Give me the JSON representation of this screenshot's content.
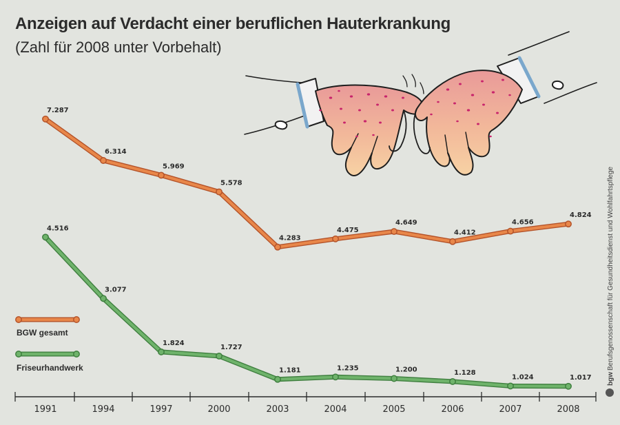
{
  "header": {
    "title": "Anzeigen auf Verdacht einer beruflichen Hauterkrankung",
    "subtitle": "(Zahl für 2008 unter Vorbehalt)"
  },
  "credit": {
    "logo_text": "bgw",
    "text": "Berufsgenossenschaft für Gesundheitsdienst und Wohlfahrtspflege"
  },
  "colors": {
    "background": "#e2e4df",
    "orange": "#e8874a",
    "green": "#6fb36b",
    "axis": "#2b2b2b"
  },
  "illustration": {
    "icon": "itchy-hands-illustration"
  },
  "chart_data": {
    "type": "line",
    "categories": [
      "1991",
      "1994",
      "1997",
      "2000",
      "2003",
      "2004",
      "2005",
      "2006",
      "2007",
      "2008"
    ],
    "series": [
      {
        "name": "BGW gesamt",
        "color": "#e8874a",
        "values": [
          7287,
          6314,
          5969,
          5578,
          4283,
          4475,
          4649,
          4412,
          4656,
          4824
        ],
        "labels": [
          "7.287",
          "6.314",
          "5.969",
          "5.578",
          "4.283",
          "4.475",
          "4.649",
          "4.412",
          "4.656",
          "4.824"
        ]
      },
      {
        "name": "Friseurhandwerk",
        "color": "#6fb36b",
        "values": [
          4516,
          3077,
          1824,
          1727,
          1181,
          1235,
          1200,
          1128,
          1024,
          1017
        ],
        "labels": [
          "4.516",
          "3.077",
          "1.824",
          "1.727",
          "1.181",
          "1.235",
          "1.200",
          "1.128",
          "1.024",
          "1.017"
        ]
      }
    ],
    "title": "Anzeigen auf Verdacht einer beruflichen Hauterkrankung",
    "xlabel": "",
    "ylabel": "",
    "ylim": [
      1017,
      7287
    ],
    "grid": false,
    "legend": "left"
  }
}
